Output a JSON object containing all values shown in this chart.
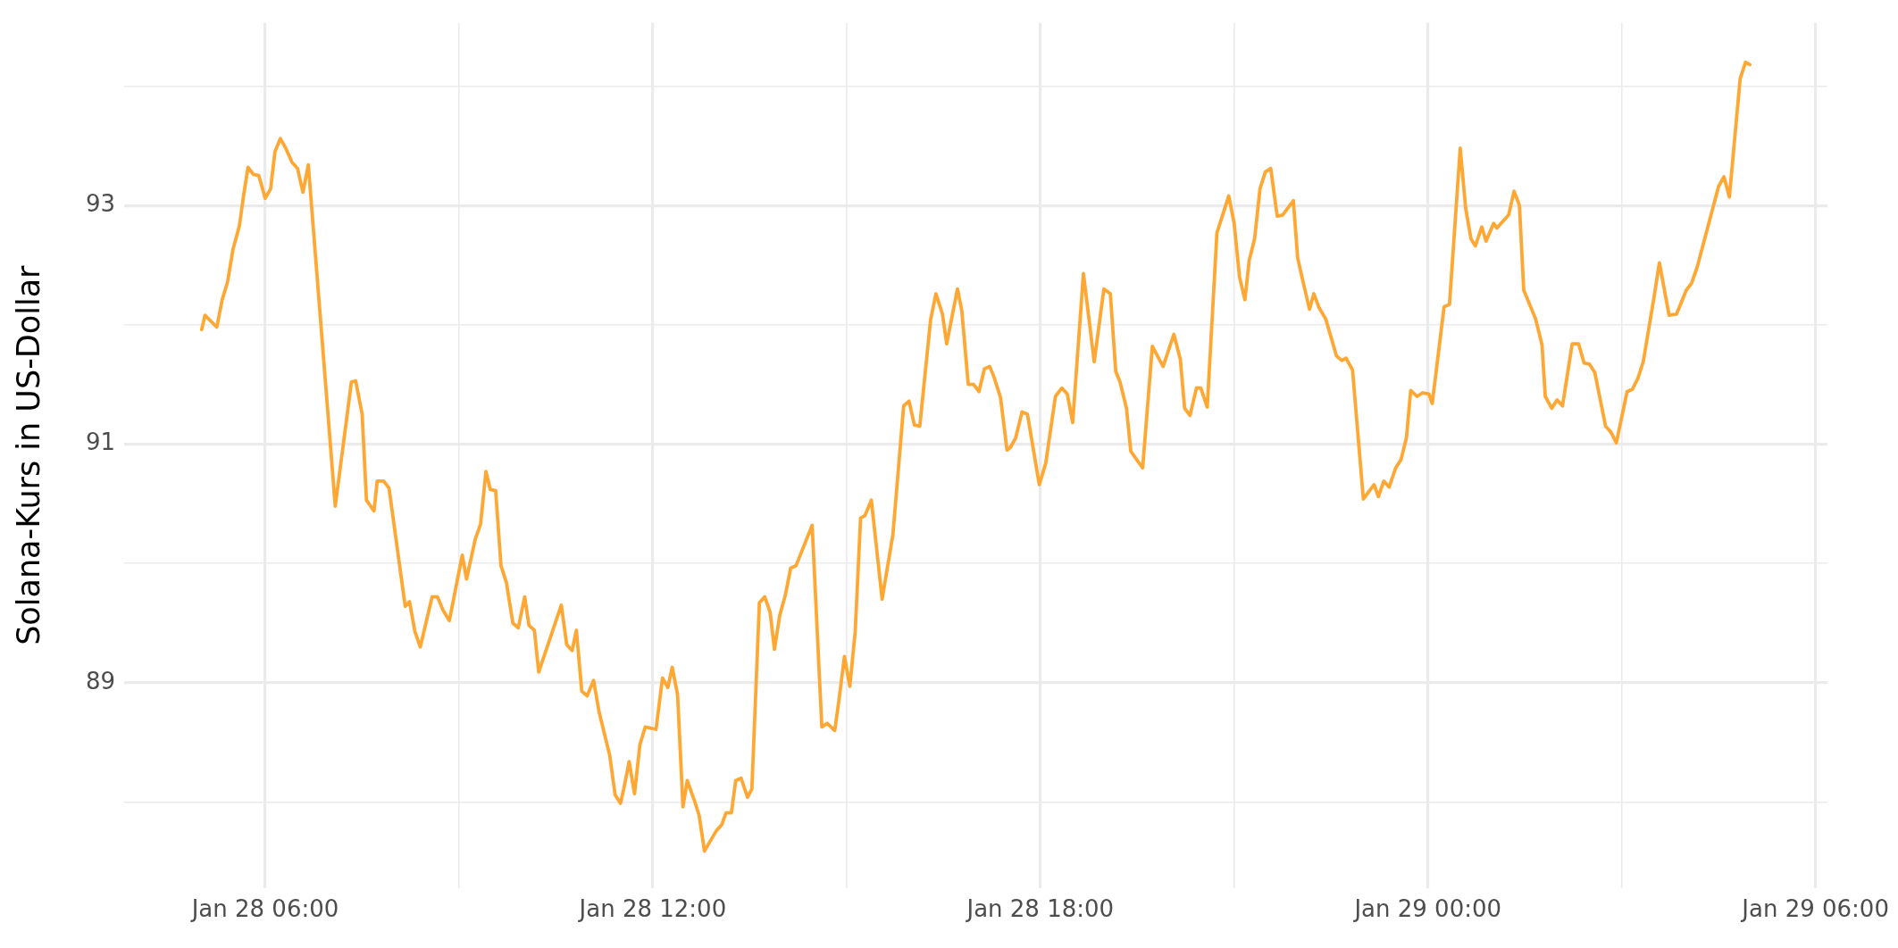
{
  "chart_data": {
    "type": "line",
    "ylabel": "Solana-Kurs in US-Dollar",
    "x": [
      "--01-28T05:01",
      "--01-28T05:04",
      "--01-28T05:15",
      "--01-28T05:20",
      "--01-28T05:25",
      "--01-28T05:30",
      "--01-28T05:36",
      "--01-28T05:40",
      "--01-28T05:44",
      "--01-28T05:49",
      "--01-28T05:54",
      "--01-28T06:00",
      "--01-28T06:05",
      "--01-28T06:09",
      "--01-28T06:14",
      "--01-28T06:19",
      "--01-28T06:25",
      "--01-28T06:30",
      "--01-28T06:35",
      "--01-28T06:40",
      "--01-28T07:05",
      "--01-28T07:15",
      "--01-28T07:20",
      "--01-28T07:24",
      "--01-28T07:30",
      "--01-28T07:34",
      "--01-28T07:41",
      "--01-28T07:44",
      "--01-28T07:50",
      "--01-28T07:55",
      "--01-28T08:10",
      "--01-28T08:14",
      "--01-28T08:19",
      "--01-28T08:24",
      "--01-28T08:35",
      "--01-28T08:40",
      "--01-28T08:45",
      "--01-28T08:51",
      "--01-28T09:03",
      "--01-28T09:07",
      "--01-28T09:15",
      "--01-28T09:20",
      "--01-28T09:25",
      "--01-28T09:29",
      "--01-28T09:34",
      "--01-28T09:39",
      "--01-28T09:44",
      "--01-28T09:50",
      "--01-28T09:55",
      "--01-28T10:01",
      "--01-28T10:05",
      "--01-28T10:10",
      "--01-28T10:14",
      "--01-28T10:35",
      "--01-28T10:40",
      "--01-28T10:45",
      "--01-28T10:49",
      "--01-28T10:54",
      "--01-28T10:59",
      "--01-28T11:05",
      "--01-28T11:10",
      "--01-28T11:20",
      "--01-28T11:25",
      "--01-28T11:30",
      "--01-28T11:33",
      "--01-28T11:38",
      "--01-28T11:43",
      "--01-28T11:48",
      "--01-28T11:53",
      "--01-28T12:03",
      "--01-28T12:09",
      "--01-28T12:14",
      "--01-28T12:18",
      "--01-28T12:23",
      "--01-28T12:28",
      "--01-28T12:32",
      "--01-28T12:38",
      "--01-28T12:43",
      "--01-28T12:48",
      "--01-28T12:59",
      "--01-28T13:04",
      "--01-28T13:08",
      "--01-28T13:13",
      "--01-28T13:17",
      "--01-28T13:22",
      "--01-28T13:28",
      "--01-28T13:32",
      "--01-28T13:39",
      "--01-28T13:44",
      "--01-28T13:49",
      "--01-28T13:53",
      "--01-28T13:58",
      "--01-28T14:03",
      "--01-28T14:08",
      "--01-28T14:13",
      "--01-28T14:28",
      "--01-28T14:37",
      "--01-28T14:42",
      "--01-28T14:49",
      "--01-28T14:53",
      "--01-28T14:58",
      "--01-28T15:03",
      "--01-28T15:08",
      "--01-28T15:13",
      "--01-28T15:17",
      "--01-28T15:23",
      "--01-28T15:33",
      "--01-28T15:43",
      "--01-28T15:53",
      "--01-28T15:58",
      "--01-28T16:03",
      "--01-28T16:08",
      "--01-28T16:18",
      "--01-28T16:23",
      "--01-28T16:29",
      "--01-28T16:33",
      "--01-28T16:43",
      "--01-28T16:47",
      "--01-28T16:53",
      "--01-28T16:58",
      "--01-28T17:03",
      "--01-28T17:08",
      "--01-28T17:13",
      "--01-28T17:17",
      "--01-28T17:23",
      "--01-28T17:29",
      "--01-28T17:32",
      "--01-28T17:37",
      "--01-28T17:43",
      "--01-28T17:48",
      "--01-28T17:59",
      "--01-28T18:05",
      "--01-28T18:14",
      "--01-28T18:20",
      "--01-28T18:25",
      "--01-28T18:30",
      "--01-28T18:40",
      "--01-28T18:50",
      "--01-28T18:59",
      "--01-28T19:05",
      "--01-28T19:10",
      "--01-28T19:14",
      "--01-28T19:20",
      "--01-28T19:24",
      "--01-28T19:35",
      "--01-28T19:44",
      "--01-28T19:54",
      "--01-28T20:04",
      "--01-28T20:10",
      "--01-28T20:14",
      "--01-28T20:19",
      "--01-28T20:25",
      "--01-28T20:29",
      "--01-28T20:35",
      "--01-28T20:44",
      "--01-28T20:55",
      "--01-28T21:00",
      "--01-28T21:05",
      "--01-28T21:10",
      "--01-28T21:14",
      "--01-28T21:19",
      "--01-28T21:24",
      "--01-28T21:29",
      "--01-28T21:34",
      "--01-28T21:40",
      "--01-28T21:45",
      "--01-28T21:55",
      "--01-28T21:59",
      "--01-28T22:04",
      "--01-28T22:10",
      "--01-28T22:14",
      "--01-28T22:19",
      "--01-28T22:25",
      "--01-28T22:35",
      "--01-28T22:40",
      "--01-28T22:44",
      "--01-28T22:50",
      "--01-28T23:00",
      "--01-28T23:10",
      "--01-28T23:14",
      "--01-28T23:19",
      "--01-28T23:24",
      "--01-28T23:30",
      "--01-28T23:35",
      "--01-28T23:40",
      "--01-28T23:44",
      "--01-28T23:50",
      "--01-28T23:55",
      "--01-29T00:01",
      "--01-29T00:04",
      "--01-29T00:15",
      "--01-29T00:20",
      "--01-29T00:30",
      "--01-29T00:35",
      "--01-29T00:40",
      "--01-29T00:44",
      "--01-29T00:50",
      "--01-29T00:54",
      "--01-29T01:01",
      "--01-29T01:04",
      "--01-29T01:15",
      "--01-29T01:20",
      "--01-29T01:25",
      "--01-29T01:29",
      "--01-29T01:40",
      "--01-29T01:46",
      "--01-29T01:49",
      "--01-29T01:55",
      "--01-29T02:00",
      "--01-29T02:05",
      "--01-29T02:14",
      "--01-29T02:20",
      "--01-29T02:25",
      "--01-29T02:30",
      "--01-29T02:35",
      "--01-29T02:45",
      "--01-29T02:50",
      "--01-29T02:55",
      "--01-29T03:05",
      "--01-29T03:10",
      "--01-29T03:15",
      "--01-29T03:20",
      "--01-29T03:30",
      "--01-29T03:35",
      "--01-29T03:44",
      "--01-29T03:51",
      "--01-29T04:00",
      "--01-29T04:05",
      "--01-29T04:10",
      "--01-29T04:20",
      "--01-29T04:30",
      "--01-29T04:35",
      "--01-29T04:40",
      "--01-29T04:50",
      "--01-29T04:55",
      "--01-29T04:59"
    ],
    "series": [
      {
        "color": "#ffa733",
        "values": [
          91.96,
          92.08,
          91.98,
          92.21,
          92.36,
          92.63,
          92.83,
          93.09,
          93.32,
          93.26,
          93.25,
          93.06,
          93.14,
          93.45,
          93.56,
          93.48,
          93.36,
          93.31,
          93.11,
          93.34,
          90.48,
          91.17,
          91.52,
          91.53,
          91.25,
          90.53,
          90.44,
          90.69,
          90.69,
          90.63,
          89.64,
          89.68,
          89.43,
          89.3,
          89.72,
          89.72,
          89.61,
          89.52,
          90.07,
          89.87,
          90.2,
          90.33,
          90.77,
          90.62,
          90.61,
          89.98,
          89.84,
          89.5,
          89.46,
          89.72,
          89.48,
          89.44,
          89.09,
          89.65,
          89.32,
          89.27,
          89.44,
          88.93,
          88.89,
          89.02,
          88.76,
          88.39,
          88.06,
          87.99,
          88.11,
          88.34,
          88.07,
          88.48,
          88.63,
          88.61,
          89.04,
          88.96,
          89.13,
          88.9,
          87.96,
          88.18,
          88.03,
          87.89,
          87.59,
          87.76,
          87.81,
          87.91,
          87.91,
          88.18,
          88.2,
          88.04,
          88.11,
          89.67,
          89.72,
          89.59,
          89.28,
          89.57,
          89.73,
          89.96,
          89.98,
          90.32,
          88.63,
          88.66,
          88.6,
          88.86,
          89.22,
          88.97,
          89.43,
          90.38,
          90.4,
          90.53,
          89.7,
          90.24,
          91.32,
          91.36,
          91.16,
          91.15,
          92.04,
          92.26,
          92.09,
          91.84,
          92.3,
          92.12,
          91.5,
          91.5,
          91.44,
          91.63,
          91.65,
          91.56,
          91.39,
          90.95,
          90.97,
          91.05,
          91.27,
          91.25,
          90.66,
          90.84,
          91.4,
          91.47,
          91.42,
          91.18,
          92.43,
          91.69,
          92.3,
          92.26,
          91.61,
          91.52,
          91.3,
          90.94,
          90.8,
          91.82,
          91.65,
          91.92,
          91.71,
          91.3,
          91.24,
          91.47,
          91.47,
          91.31,
          92.77,
          93.08,
          92.85,
          92.4,
          92.21,
          92.54,
          92.72,
          93.14,
          93.28,
          93.31,
          92.91,
          92.92,
          93.04,
          92.56,
          92.36,
          92.13,
          92.26,
          92.14,
          92.05,
          91.74,
          91.7,
          91.72,
          91.62,
          90.54,
          90.66,
          90.56,
          90.69,
          90.64,
          90.8,
          90.87,
          91.05,
          91.45,
          91.4,
          91.43,
          91.42,
          91.34,
          92.15,
          92.17,
          93.48,
          92.98,
          92.72,
          92.66,
          92.82,
          92.7,
          92.85,
          92.81,
          92.92,
          93.12,
          93.0,
          92.29,
          92.05,
          91.83,
          91.4,
          91.3,
          91.37,
          91.32,
          91.84,
          91.84,
          91.68,
          91.67,
          91.6,
          91.15,
          91.1,
          91.01,
          91.44,
          91.46,
          91.55,
          91.69,
          92.23,
          92.52,
          92.08,
          92.09,
          92.29,
          92.35,
          92.48,
          92.82,
          93.16,
          93.24,
          93.07,
          94.06,
          94.2,
          94.18
        ]
      }
    ],
    "xlim": [
      "--01-28T03:49",
      "--01-29T06:11"
    ],
    "xticks": [
      {
        "value": "--01-28T06:00",
        "label": "Jan 28 06:00"
      },
      {
        "value": "--01-28T09:00",
        "label": null
      },
      {
        "value": "--01-28T12:00",
        "label": "Jan 28 12:00"
      },
      {
        "value": "--01-28T15:00",
        "label": null
      },
      {
        "value": "--01-28T18:00",
        "label": "Jan 28 18:00"
      },
      {
        "value": "--01-28T21:00",
        "label": null
      },
      {
        "value": "--01-29T00:00",
        "label": "Jan 29 00:00"
      },
      {
        "value": "--01-29T03:00",
        "label": null
      },
      {
        "value": "--01-29T06:00",
        "label": "Jan 29 06:00"
      }
    ],
    "ylim": [
      87.28,
      94.53
    ],
    "yticks": [
      {
        "value": 88,
        "label": null
      },
      89,
      {
        "value": 90,
        "label": null
      },
      91,
      {
        "value": 92,
        "label": null
      },
      93,
      {
        "value": 94,
        "label": null
      }
    ],
    "grid": true,
    "marker": "none",
    "line_style": "solid"
  }
}
